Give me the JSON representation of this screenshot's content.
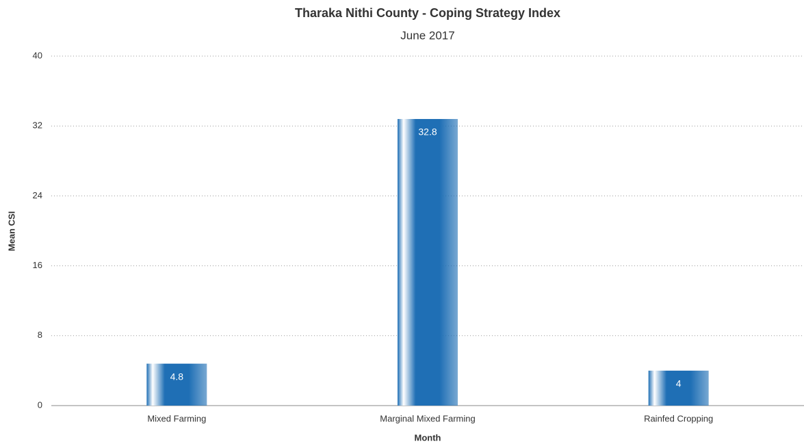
{
  "chart_data": {
    "type": "bar",
    "title": "Tharaka Nithi County - Coping Strategy Index",
    "subtitle": "June 2017",
    "x_label": "Month",
    "y_label": "Mean CSI",
    "categories": [
      "Mixed Farming",
      "Marginal Mixed Farming",
      "Rainfed Cropping"
    ],
    "values": [
      4.8,
      32.8,
      4
    ],
    "color": "#1f6fb5",
    "ylim": [
      0,
      40
    ],
    "yticks": [
      0,
      8,
      16,
      24,
      32,
      40
    ],
    "grid": true
  }
}
